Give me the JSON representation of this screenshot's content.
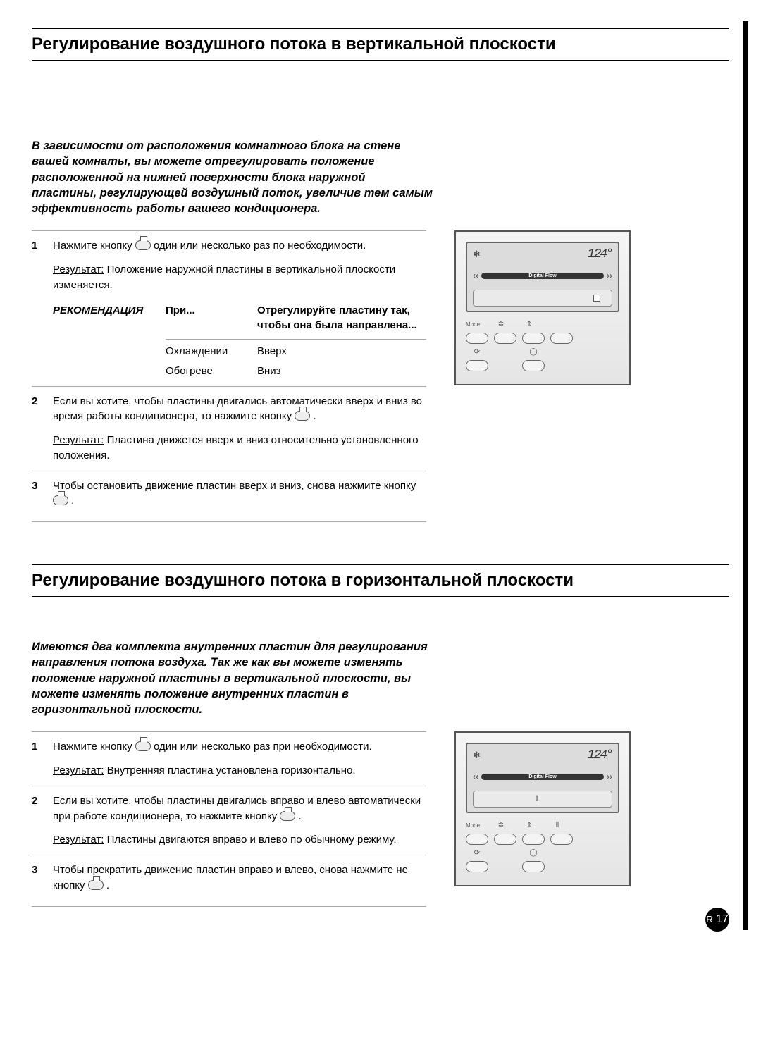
{
  "page_number_prefix": "R-",
  "page_number": "17",
  "sectionA": {
    "title": "Регулирование воздушного потока в вертикальной плоскости",
    "intro": "В зависимости от расположения комнатного блока на стене вашей комнаты, вы можете отрегулировать положение расположенной на нижней поверхности блока наружной пластины, регулирующей воздушный поток, увеличив тем самым эффективность работы вашего кондиционера.",
    "step1_a": "Нажмите кнопку ",
    "step1_b": " один или несколько раз по необходимости.",
    "step1_result_label": "Результат:",
    "step1_result": "Положение наружной пластины в вертикальной плоскости изменяется.",
    "rec_label": "РЕКОМЕНДАЦИЯ",
    "rec_col1": "При...",
    "rec_col2": "Отрегулируйте пластину так, чтобы она была направлена...",
    "rec_rows": [
      {
        "c1": "Охлаждении",
        "c2": "Вверх"
      },
      {
        "c1": "Обогреве",
        "c2": "Вниз"
      }
    ],
    "step2_a": "Если вы хотите, чтобы пластины двигались автоматически вверх и вниз во время работы кондиционера, то нажмите кнопку ",
    "step2_b": " .",
    "step2_result_label": "Результат:",
    "step2_result": "Пластина движется вверх и вниз относительно установленного положения.",
    "step3_a": "Чтобы остановить движение пластин вверх и вниз, снова нажмите кнопку ",
    "step3_b": " ."
  },
  "sectionB": {
    "title": "Регулирование воздушного потока в горизонтальной плоскости",
    "intro": "Имеются два комплекта внутренних пластин для регулирования направления потока воздуха. Так же как вы можете изменять положение наружной пластины в вертикальной плоскости, вы можете изменять положение внутренних пластин в горизонтальной плоскости.",
    "step1_a": "Нажмите кнопку ",
    "step1_b": " один или несколько раз при необходимости.",
    "step1_result_label": "Результат:",
    "step1_result": "Внутренняя пластина установлена горизонтально.",
    "step2_a": "Если вы хотите, чтобы пластины двигались вправо и влево автоматически при работе кондиционера, то нажмите кнопку ",
    "step2_b": " .",
    "step2_result_label": "Результат:",
    "step2_result": "Пластины двигаются вправо и влево по обычному режиму.",
    "step3_a": "Чтобы прекратить движение пластин вправо и влево, снова нажмите не кнопку ",
    "step3_b": " ."
  },
  "remote": {
    "temp": "124°",
    "flow_label": "Digital Flow",
    "mode_label": "Mode"
  }
}
